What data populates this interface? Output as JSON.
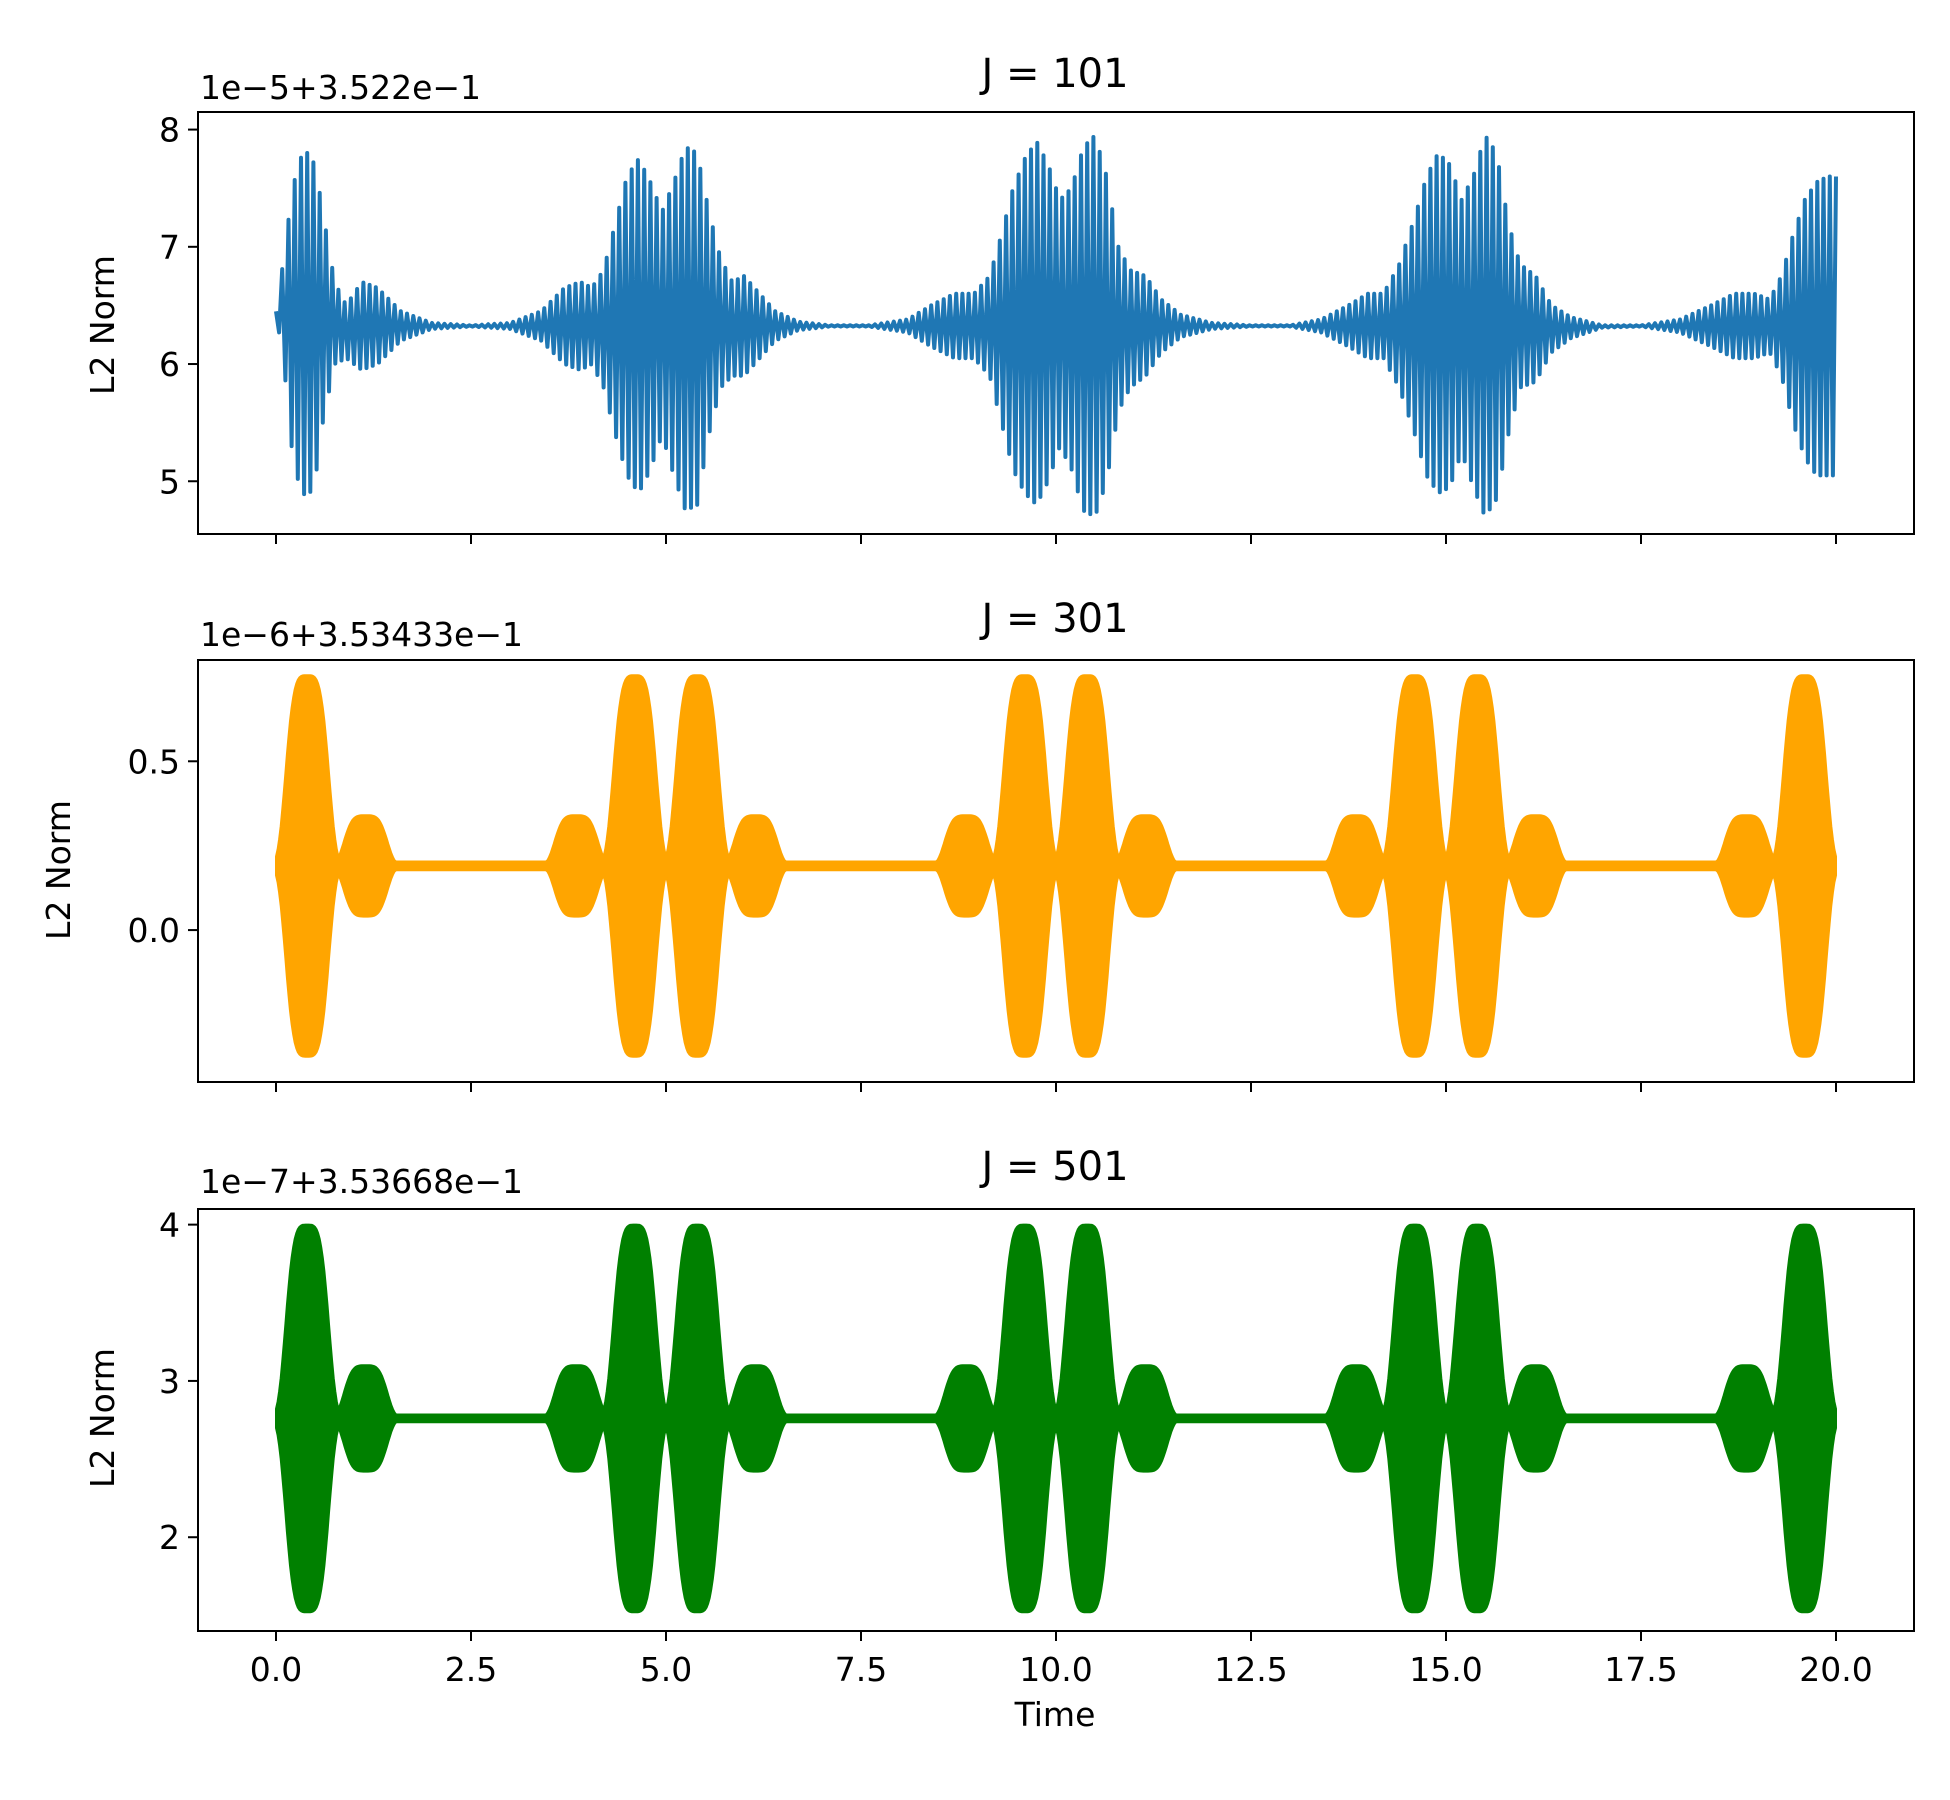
{
  "chart_data": [
    {
      "type": "line",
      "title": "J = 101",
      "offset_label": "1e−5+3.522e−1",
      "xlabel": "",
      "ylabel": "L2 Norm",
      "xlim": [
        -1.0,
        21.0
      ],
      "ylim": [
        4.55,
        8.15
      ],
      "xticks": [
        0,
        2.5,
        5,
        7.5,
        10,
        12.5,
        15,
        17.5,
        20
      ],
      "xtick_labels": [],
      "yticks": [
        5,
        6,
        7,
        8
      ],
      "ytick_labels": [
        "5",
        "6",
        "7",
        "8"
      ],
      "color": "#1f77b4",
      "series": [
        {
          "envelope": {
            "x": [
              0.0,
              0.1,
              0.2,
              0.3,
              0.4,
              0.5,
              0.6,
              0.75,
              0.9,
              1.1,
              1.3,
              1.6,
              2.0,
              2.5,
              3.0,
              3.4,
              3.7,
              3.9,
              4.05,
              4.2,
              4.35,
              4.5,
              4.65,
              4.8,
              4.95,
              5.1,
              5.25,
              5.4,
              5.55,
              5.7,
              5.85,
              6.0,
              6.2,
              6.4,
              6.7,
              7.1,
              7.6,
              8.1,
              8.4,
              8.7,
              8.95,
              9.15,
              9.3,
              9.45,
              9.6,
              9.75,
              9.9,
              10.05,
              10.2,
              10.35,
              10.5,
              10.65,
              10.8,
              10.95,
              11.15,
              11.35,
              11.6,
              12.0,
              12.5,
              13.0,
              13.4,
              13.75,
              14.0,
              14.2,
              14.4,
              14.6,
              14.75,
              14.9,
              15.05,
              15.2,
              15.35,
              15.5,
              15.65,
              15.8,
              15.95,
              16.15,
              16.35,
              16.6,
              17.0,
              17.5,
              18.0,
              18.4,
              18.7,
              18.95,
              19.15,
              19.3,
              19.45,
              19.6,
              19.75,
              19.9,
              20.0
            ],
            "upper": [
              6.45,
              6.9,
              7.45,
              7.75,
              7.8,
              7.7,
              7.3,
              6.7,
              6.5,
              6.7,
              6.65,
              6.45,
              6.35,
              6.33,
              6.35,
              6.45,
              6.65,
              6.7,
              6.65,
              6.8,
              7.2,
              7.6,
              7.75,
              7.55,
              7.3,
              7.55,
              7.85,
              7.8,
              7.3,
              6.9,
              6.7,
              6.75,
              6.6,
              6.45,
              6.36,
              6.33,
              6.33,
              6.38,
              6.5,
              6.6,
              6.6,
              6.75,
              7.1,
              7.5,
              7.75,
              7.9,
              7.7,
              7.4,
              7.5,
              7.85,
              7.95,
              7.6,
              7.0,
              6.8,
              6.75,
              6.55,
              6.42,
              6.35,
              6.33,
              6.33,
              6.38,
              6.5,
              6.6,
              6.6,
              6.85,
              7.25,
              7.6,
              7.8,
              7.7,
              7.4,
              7.6,
              7.95,
              7.8,
              7.2,
              6.85,
              6.75,
              6.5,
              6.4,
              6.33,
              6.33,
              6.38,
              6.5,
              6.6,
              6.6,
              6.55,
              6.75,
              7.1,
              7.4,
              7.55,
              7.6,
              7.6
            ],
            "lower": [
              6.45,
              6.0,
              5.3,
              4.95,
              4.85,
              5.0,
              5.5,
              6.0,
              6.05,
              5.95,
              6.0,
              6.2,
              6.3,
              6.32,
              6.3,
              6.2,
              6.0,
              5.95,
              6.0,
              5.8,
              5.4,
              5.05,
              4.9,
              5.1,
              5.4,
              5.05,
              4.75,
              4.8,
              5.4,
              5.8,
              5.9,
              5.9,
              6.05,
              6.2,
              6.29,
              6.32,
              6.32,
              6.27,
              6.15,
              6.05,
              6.05,
              5.9,
              5.5,
              5.1,
              4.9,
              4.8,
              5.0,
              5.3,
              5.1,
              4.75,
              4.7,
              5.0,
              5.6,
              5.8,
              5.9,
              6.1,
              6.23,
              6.3,
              6.32,
              6.32,
              6.27,
              6.15,
              6.05,
              6.05,
              5.8,
              5.4,
              5.05,
              4.9,
              4.95,
              5.25,
              4.95,
              4.7,
              4.85,
              5.4,
              5.8,
              5.85,
              6.1,
              6.22,
              6.31,
              6.32,
              6.27,
              6.15,
              6.05,
              6.05,
              6.1,
              5.9,
              5.5,
              5.2,
              5.05,
              5.05,
              5.05
            ]
          },
          "oscillation_period": 0.08
        }
      ]
    },
    {
      "type": "area",
      "title": "J = 301",
      "offset_label": "1e−6+3.53433e−1",
      "xlabel": "",
      "ylabel": "L2 Norm",
      "xlim": [
        -1.0,
        21.0
      ],
      "ylim": [
        -0.45,
        0.8
      ],
      "xticks": [
        0,
        2.5,
        5,
        7.5,
        10,
        12.5,
        15,
        17.5,
        20
      ],
      "xtick_labels": [],
      "yticks": [
        0.0,
        0.5
      ],
      "ytick_labels": [
        "0.0",
        "0.5"
      ],
      "color": "#ffa500",
      "center": 0.19,
      "lobes": [
        {
          "c": 0.4,
          "w": 0.22,
          "a": 0.565
        },
        {
          "c": 1.15,
          "w": 0.22,
          "a": 0.15
        },
        {
          "c": 3.85,
          "w": 0.22,
          "a": 0.15
        },
        {
          "c": 4.6,
          "w": 0.22,
          "a": 0.565
        },
        {
          "c": 5.4,
          "w": 0.22,
          "a": 0.565
        },
        {
          "c": 6.15,
          "w": 0.22,
          "a": 0.15
        },
        {
          "c": 8.85,
          "w": 0.22,
          "a": 0.15
        },
        {
          "c": 9.6,
          "w": 0.22,
          "a": 0.565
        },
        {
          "c": 10.4,
          "w": 0.22,
          "a": 0.565
        },
        {
          "c": 11.15,
          "w": 0.22,
          "a": 0.15
        },
        {
          "c": 13.85,
          "w": 0.22,
          "a": 0.15
        },
        {
          "c": 14.6,
          "w": 0.22,
          "a": 0.565
        },
        {
          "c": 15.4,
          "w": 0.22,
          "a": 0.565
        },
        {
          "c": 16.15,
          "w": 0.22,
          "a": 0.15
        },
        {
          "c": 18.85,
          "w": 0.22,
          "a": 0.15
        },
        {
          "c": 19.6,
          "w": 0.22,
          "a": 0.565
        }
      ],
      "baseline_half_width": 0.013,
      "plateau_width": 0.9
    },
    {
      "type": "area",
      "title": "J = 501",
      "offset_label": "1e−7+3.53668e−1",
      "xlabel": "Time",
      "ylabel": "L2 Norm",
      "xlim": [
        -1.0,
        21.0
      ],
      "ylim": [
        1.4,
        4.1
      ],
      "xticks": [
        0,
        2.5,
        5,
        7.5,
        10,
        12.5,
        15,
        17.5,
        20
      ],
      "xtick_labels": [
        "0.0",
        "2.5",
        "5.0",
        "7.5",
        "10.0",
        "12.5",
        "15.0",
        "17.5",
        "20.0"
      ],
      "yticks": [
        2,
        3,
        4
      ],
      "ytick_labels": [
        "2",
        "3",
        "4"
      ],
      "color": "#008000",
      "center": 2.76,
      "lobes": [
        {
          "c": 0.4,
          "w": 0.22,
          "a": 1.24
        },
        {
          "c": 1.15,
          "w": 0.22,
          "a": 0.34
        },
        {
          "c": 3.85,
          "w": 0.22,
          "a": 0.34
        },
        {
          "c": 4.6,
          "w": 0.22,
          "a": 1.24
        },
        {
          "c": 5.4,
          "w": 0.22,
          "a": 1.24
        },
        {
          "c": 6.15,
          "w": 0.22,
          "a": 0.34
        },
        {
          "c": 8.85,
          "w": 0.22,
          "a": 0.34
        },
        {
          "c": 9.6,
          "w": 0.22,
          "a": 1.24
        },
        {
          "c": 10.4,
          "w": 0.22,
          "a": 1.24
        },
        {
          "c": 11.15,
          "w": 0.22,
          "a": 0.34
        },
        {
          "c": 13.85,
          "w": 0.22,
          "a": 0.34
        },
        {
          "c": 14.6,
          "w": 0.22,
          "a": 1.24
        },
        {
          "c": 15.4,
          "w": 0.22,
          "a": 1.24
        },
        {
          "c": 16.15,
          "w": 0.22,
          "a": 0.34
        },
        {
          "c": 18.85,
          "w": 0.22,
          "a": 0.34
        },
        {
          "c": 19.6,
          "w": 0.22,
          "a": 1.24
        }
      ],
      "baseline_half_width": 0.025,
      "plateau_width": 0.9
    }
  ]
}
